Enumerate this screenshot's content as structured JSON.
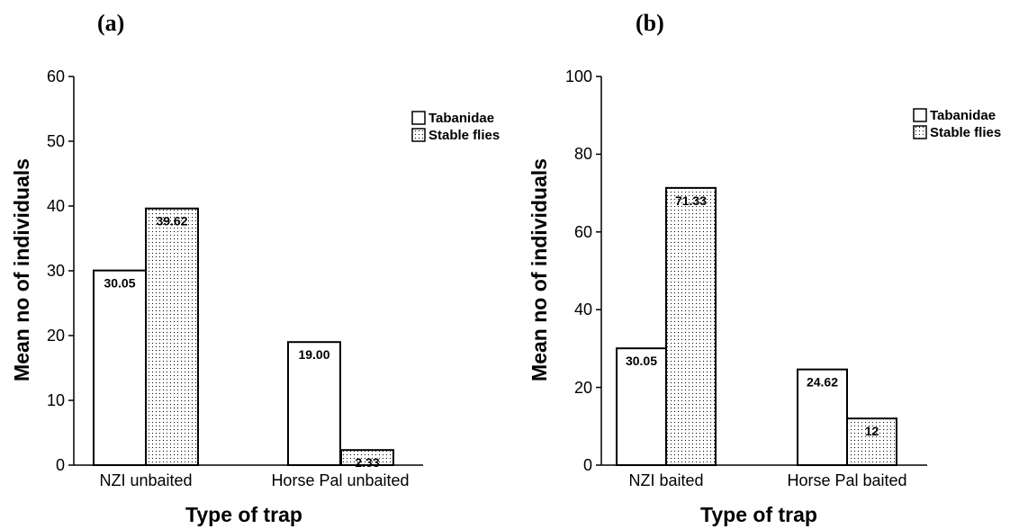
{
  "chart_data": [
    {
      "type": "bar",
      "panel_label": "(a)",
      "categories": [
        "NZI unbaited",
        "Horse Pal unbaited"
      ],
      "series": [
        {
          "name": "Tabanidae",
          "values": [
            30.05,
            19.0
          ],
          "labels": [
            "30.05",
            "19.00"
          ]
        },
        {
          "name": "Stable flies",
          "values": [
            39.62,
            2.33
          ],
          "labels": [
            "39.62",
            "2.33"
          ]
        }
      ],
      "xlabel": "Type of trap",
      "ylabel": "Mean no of individuals",
      "ylim": [
        0,
        60
      ],
      "yticks": [
        "0",
        "10",
        "20",
        "30",
        "40",
        "50",
        "60"
      ],
      "grid": false,
      "legend_position": "top-right"
    },
    {
      "type": "bar",
      "panel_label": "(b)",
      "categories": [
        "NZI baited",
        "Horse Pal baited"
      ],
      "series": [
        {
          "name": "Tabanidae",
          "values": [
            30.05,
            24.62
          ],
          "labels": [
            "30.05",
            "24.62"
          ]
        },
        {
          "name": "Stable flies",
          "values": [
            71.33,
            12
          ],
          "labels": [
            "71.33",
            "12"
          ]
        }
      ],
      "xlabel": "Type of trap",
      "ylabel": "Mean no of individuals",
      "ylim": [
        0,
        100
      ],
      "yticks": [
        "0",
        "20",
        "40",
        "60",
        "80",
        "100"
      ],
      "grid": false,
      "legend_position": "top-right"
    }
  ],
  "colors": {
    "bar_fill": "#ffffff",
    "dot_pattern": "#000000",
    "axis": "#000000"
  }
}
